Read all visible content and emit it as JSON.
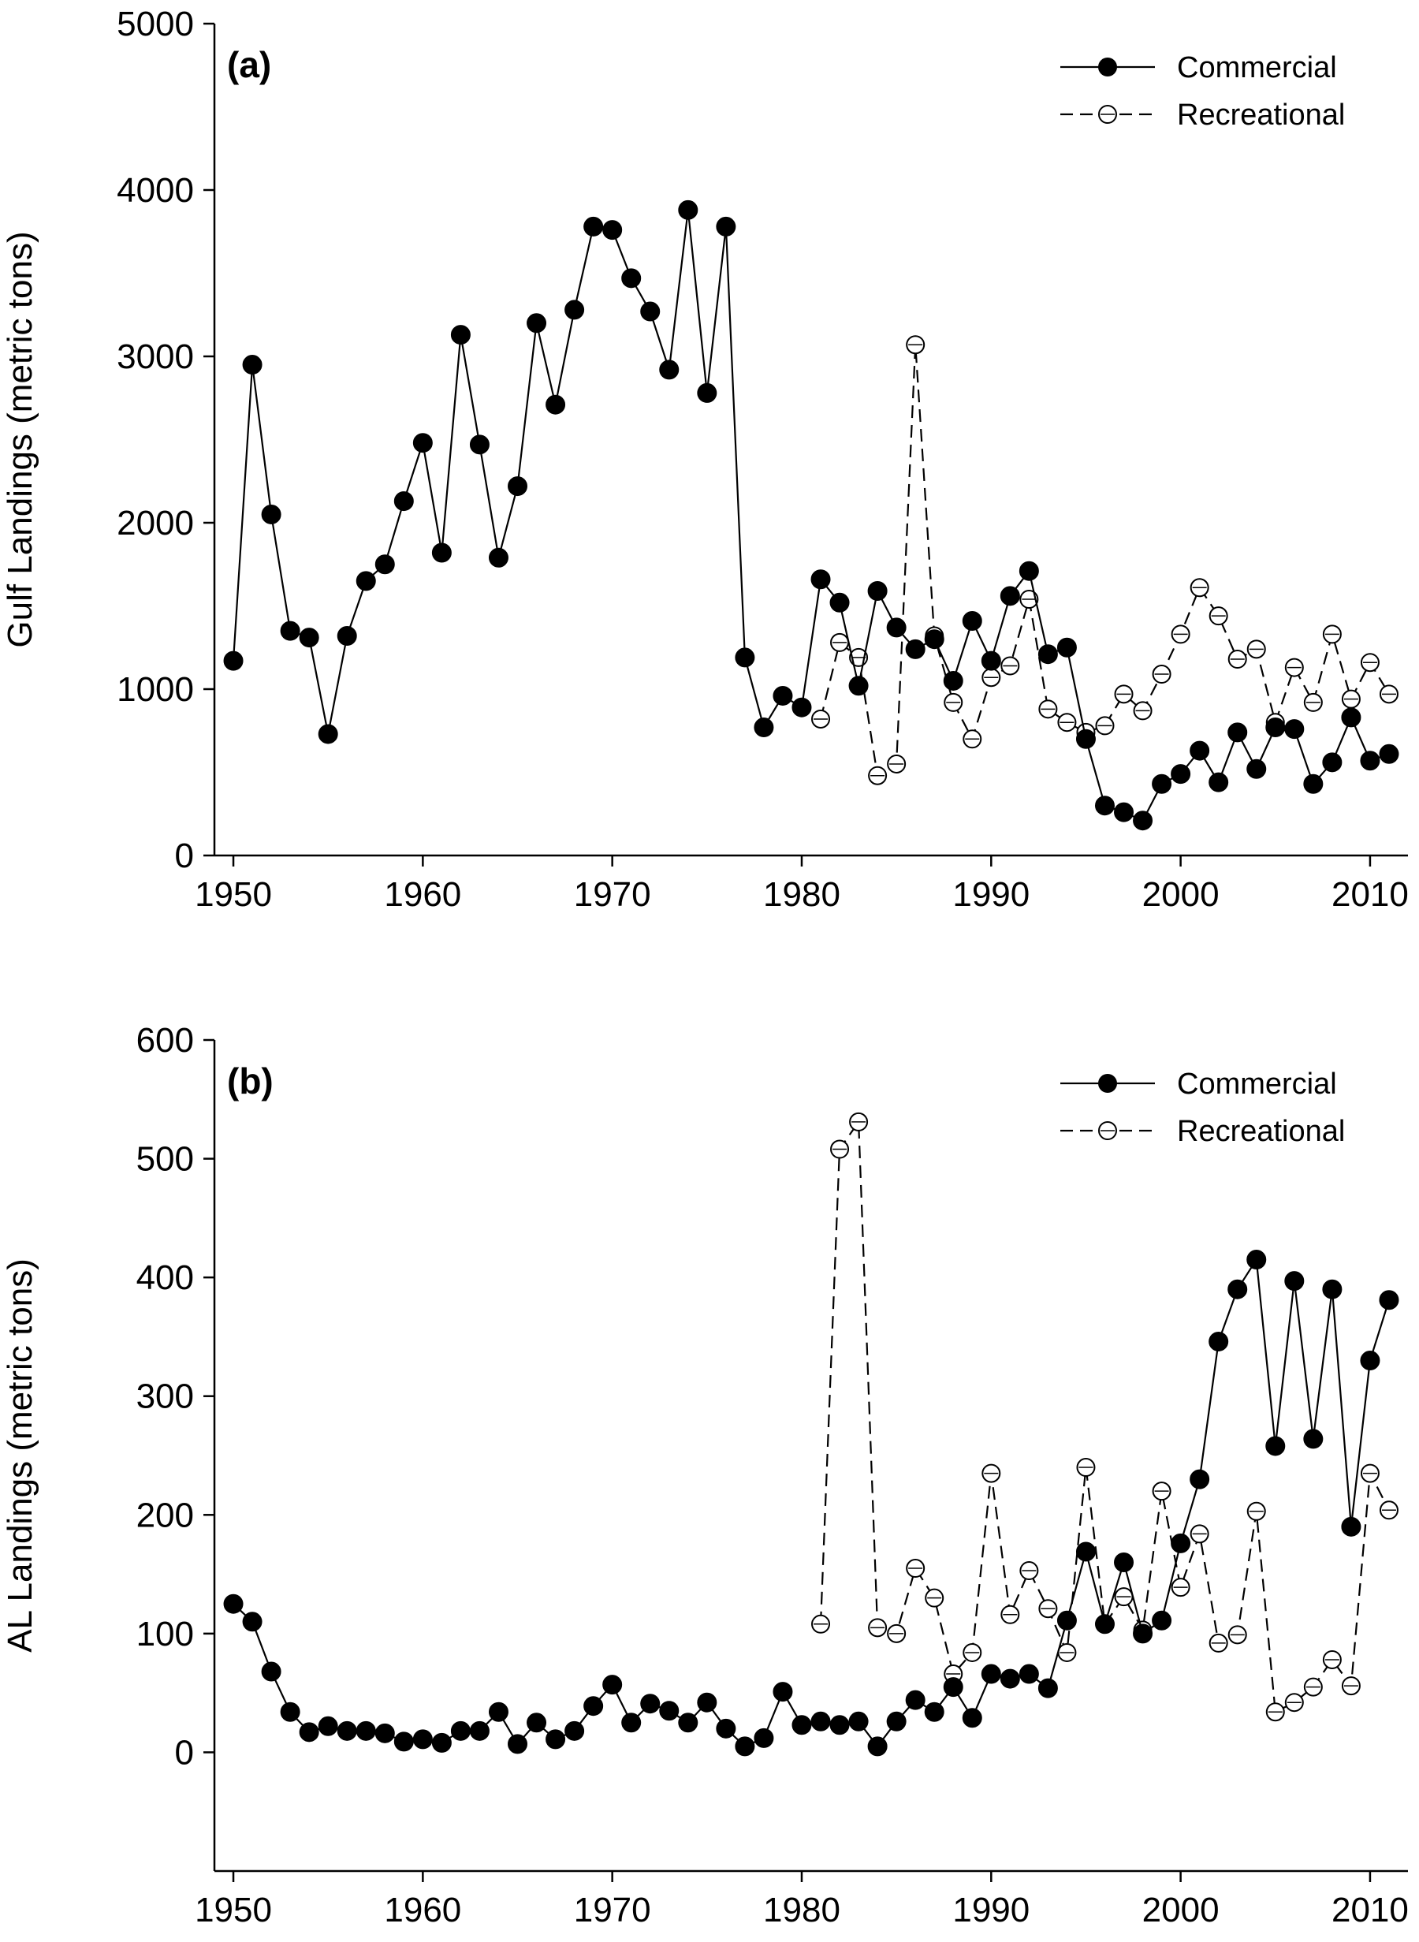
{
  "chart_data": [
    {
      "type": "line",
      "panel_label": "(a)",
      "xlabel": "",
      "ylabel": "Gulf Landings (metric tons)",
      "xlim": [
        1949,
        2012
      ],
      "ylim": [
        0,
        5000
      ],
      "xticks": [
        1950,
        1960,
        1970,
        1980,
        1990,
        2000,
        2010
      ],
      "yticks": [
        0,
        1000,
        2000,
        3000,
        4000,
        5000
      ],
      "legend_position": "top-right",
      "grid": false,
      "series": [
        {
          "name": "Commercial",
          "style": "solid-filled",
          "points": [
            [
              1950,
              1170
            ],
            [
              1951,
              2950
            ],
            [
              1952,
              2050
            ],
            [
              1953,
              1350
            ],
            [
              1954,
              1310
            ],
            [
              1955,
              730
            ],
            [
              1956,
              1320
            ],
            [
              1957,
              1650
            ],
            [
              1958,
              1750
            ],
            [
              1959,
              2130
            ],
            [
              1960,
              2480
            ],
            [
              1961,
              1820
            ],
            [
              1962,
              3130
            ],
            [
              1963,
              2470
            ],
            [
              1964,
              1790
            ],
            [
              1965,
              2220
            ],
            [
              1966,
              3200
            ],
            [
              1967,
              2710
            ],
            [
              1968,
              3280
            ],
            [
              1969,
              3780
            ],
            [
              1970,
              3760
            ],
            [
              1971,
              3470
            ],
            [
              1972,
              3270
            ],
            [
              1973,
              2920
            ],
            [
              1974,
              3880
            ],
            [
              1975,
              2780
            ],
            [
              1976,
              3780
            ],
            [
              1977,
              1190
            ],
            [
              1978,
              770
            ],
            [
              1979,
              960
            ],
            [
              1980,
              890
            ],
            [
              1981,
              1660
            ],
            [
              1982,
              1520
            ],
            [
              1983,
              1020
            ],
            [
              1984,
              1590
            ],
            [
              1985,
              1370
            ],
            [
              1986,
              1240
            ],
            [
              1987,
              1300
            ],
            [
              1988,
              1050
            ],
            [
              1989,
              1410
            ],
            [
              1990,
              1170
            ],
            [
              1991,
              1560
            ],
            [
              1992,
              1710
            ],
            [
              1993,
              1210
            ],
            [
              1994,
              1250
            ],
            [
              1995,
              700
            ],
            [
              1996,
              300
            ],
            [
              1997,
              260
            ],
            [
              1998,
              210
            ],
            [
              1999,
              430
            ],
            [
              2000,
              490
            ],
            [
              2001,
              630
            ],
            [
              2002,
              440
            ],
            [
              2003,
              740
            ],
            [
              2004,
              520
            ],
            [
              2005,
              770
            ],
            [
              2006,
              760
            ],
            [
              2007,
              430
            ],
            [
              2008,
              560
            ],
            [
              2009,
              830
            ],
            [
              2010,
              570
            ],
            [
              2011,
              610
            ]
          ]
        },
        {
          "name": "Recreational",
          "style": "dashed-open",
          "points": [
            [
              1981,
              820
            ],
            [
              1982,
              1280
            ],
            [
              1983,
              1190
            ],
            [
              1984,
              480
            ],
            [
              1985,
              550
            ],
            [
              1986,
              3070
            ],
            [
              1987,
              1320
            ],
            [
              1988,
              920
            ],
            [
              1989,
              700
            ],
            [
              1990,
              1070
            ],
            [
              1991,
              1140
            ],
            [
              1992,
              1540
            ],
            [
              1993,
              880
            ],
            [
              1994,
              800
            ],
            [
              1995,
              740
            ],
            [
              1996,
              780
            ],
            [
              1997,
              970
            ],
            [
              1998,
              870
            ],
            [
              1999,
              1090
            ],
            [
              2000,
              1330
            ],
            [
              2001,
              1610
            ],
            [
              2002,
              1440
            ],
            [
              2003,
              1180
            ],
            [
              2004,
              1240
            ],
            [
              2005,
              800
            ],
            [
              2006,
              1130
            ],
            [
              2007,
              920
            ],
            [
              2008,
              1330
            ],
            [
              2009,
              940
            ],
            [
              2010,
              1160
            ],
            [
              2011,
              970
            ]
          ]
        }
      ]
    },
    {
      "type": "line",
      "panel_label": "(b)",
      "xlabel": "",
      "ylabel": "AL Landings (metric tons)",
      "xlim": [
        1949,
        2012
      ],
      "ylim": [
        -100,
        600
      ],
      "xticks": [
        1950,
        1960,
        1970,
        1980,
        1990,
        2000,
        2010
      ],
      "yticks": [
        0,
        100,
        200,
        300,
        400,
        500,
        600
      ],
      "legend_position": "top-right",
      "grid": false,
      "series": [
        {
          "name": "Commercial",
          "style": "solid-filled",
          "points": [
            [
              1950,
              125
            ],
            [
              1951,
              110
            ],
            [
              1952,
              68
            ],
            [
              1953,
              34
            ],
            [
              1954,
              17
            ],
            [
              1955,
              22
            ],
            [
              1956,
              18
            ],
            [
              1957,
              18
            ],
            [
              1958,
              16
            ],
            [
              1959,
              9
            ],
            [
              1960,
              11
            ],
            [
              1961,
              8
            ],
            [
              1962,
              18
            ],
            [
              1963,
              18
            ],
            [
              1964,
              34
            ],
            [
              1965,
              7
            ],
            [
              1966,
              25
            ],
            [
              1967,
              11
            ],
            [
              1968,
              18
            ],
            [
              1969,
              39
            ],
            [
              1970,
              57
            ],
            [
              1971,
              25
            ],
            [
              1972,
              41
            ],
            [
              1973,
              35
            ],
            [
              1974,
              25
            ],
            [
              1975,
              42
            ],
            [
              1976,
              20
            ],
            [
              1977,
              5
            ],
            [
              1978,
              12
            ],
            [
              1979,
              51
            ],
            [
              1980,
              23
            ],
            [
              1981,
              26
            ],
            [
              1982,
              23
            ],
            [
              1983,
              26
            ],
            [
              1984,
              5
            ],
            [
              1985,
              26
            ],
            [
              1986,
              44
            ],
            [
              1987,
              34
            ],
            [
              1988,
              55
            ],
            [
              1989,
              29
            ],
            [
              1990,
              66
            ],
            [
              1991,
              62
            ],
            [
              1992,
              66
            ],
            [
              1993,
              54
            ],
            [
              1994,
              111
            ],
            [
              1995,
              169
            ],
            [
              1996,
              108
            ],
            [
              1997,
              160
            ],
            [
              1998,
              100
            ],
            [
              1999,
              111
            ],
            [
              2000,
              176
            ],
            [
              2001,
              230
            ],
            [
              2002,
              346
            ],
            [
              2003,
              390
            ],
            [
              2004,
              415
            ],
            [
              2005,
              258
            ],
            [
              2006,
              397
            ],
            [
              2007,
              264
            ],
            [
              2008,
              390
            ],
            [
              2009,
              190
            ],
            [
              2010,
              330
            ],
            [
              2011,
              381
            ]
          ]
        },
        {
          "name": "Recreational",
          "style": "dashed-open",
          "points": [
            [
              1981,
              108
            ],
            [
              1982,
              508
            ],
            [
              1983,
              531
            ],
            [
              1984,
              105
            ],
            [
              1985,
              100
            ],
            [
              1986,
              155
            ],
            [
              1987,
              130
            ],
            [
              1988,
              66
            ],
            [
              1989,
              84
            ],
            [
              1990,
              235
            ],
            [
              1991,
              116
            ],
            [
              1992,
              153
            ],
            [
              1993,
              121
            ],
            [
              1994,
              84
            ],
            [
              1995,
              240
            ],
            [
              1996,
              108
            ],
            [
              1997,
              131
            ],
            [
              1998,
              103
            ],
            [
              1999,
              220
            ],
            [
              2000,
              139
            ],
            [
              2001,
              184
            ],
            [
              2002,
              92
            ],
            [
              2003,
              99
            ],
            [
              2004,
              203
            ],
            [
              2005,
              34
            ],
            [
              2006,
              42
            ],
            [
              2007,
              55
            ],
            [
              2008,
              78
            ],
            [
              2009,
              56
            ],
            [
              2010,
              235
            ],
            [
              2011,
              204
            ]
          ]
        }
      ]
    }
  ]
}
